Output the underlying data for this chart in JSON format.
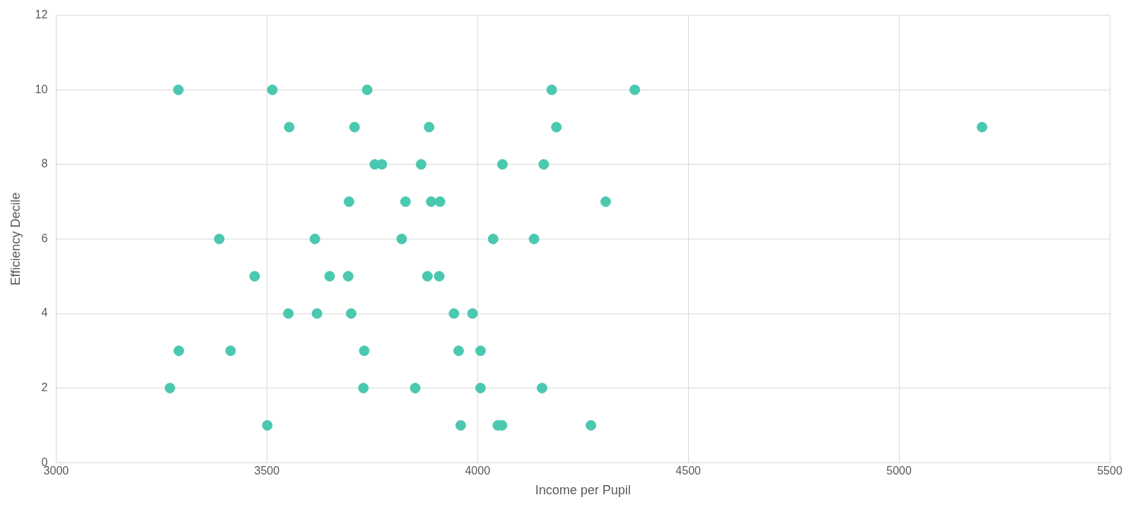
{
  "chart_data": {
    "type": "scatter",
    "xlabel": "Income per Pupil",
    "ylabel": "Efficiency Decile",
    "x": [
      3290,
      3513,
      3738,
      4176,
      4373,
      3553,
      3708,
      3885,
      4187,
      5197,
      3756,
      3773,
      3866,
      4059,
      4157,
      3695,
      3829,
      3890,
      3911,
      4304,
      3387,
      3614,
      3820,
      4037,
      4134,
      3471,
      3649,
      3693,
      3881,
      3909,
      3551,
      3619,
      3700,
      3944,
      3988,
      3291,
      3414,
      3731,
      3955,
      4007,
      3270,
      3729,
      3852,
      4007,
      4153,
      3501,
      3960,
      4048,
      4058,
      4269
    ],
    "series": [
      {
        "color": "#4bc8b0",
        "values": [
          10,
          10,
          10,
          10,
          10,
          9,
          9,
          9,
          9,
          9,
          8,
          8,
          8,
          8,
          8,
          7,
          7,
          7,
          7,
          7,
          6,
          6,
          6,
          6,
          6,
          5,
          5,
          5,
          5,
          5,
          4,
          4,
          4,
          4,
          4,
          3,
          3,
          3,
          3,
          3,
          2,
          2,
          2,
          2,
          2,
          1,
          1,
          1,
          1,
          1
        ]
      }
    ],
    "xlim": [
      3000,
      5500
    ],
    "xticks": [
      3000,
      3500,
      4000,
      4500,
      5000,
      5500
    ],
    "ylim": [
      0,
      12
    ],
    "yticks": [
      0,
      2,
      4,
      6,
      8,
      10,
      12
    ],
    "grid": true,
    "legend": false,
    "marker": "circle"
  }
}
